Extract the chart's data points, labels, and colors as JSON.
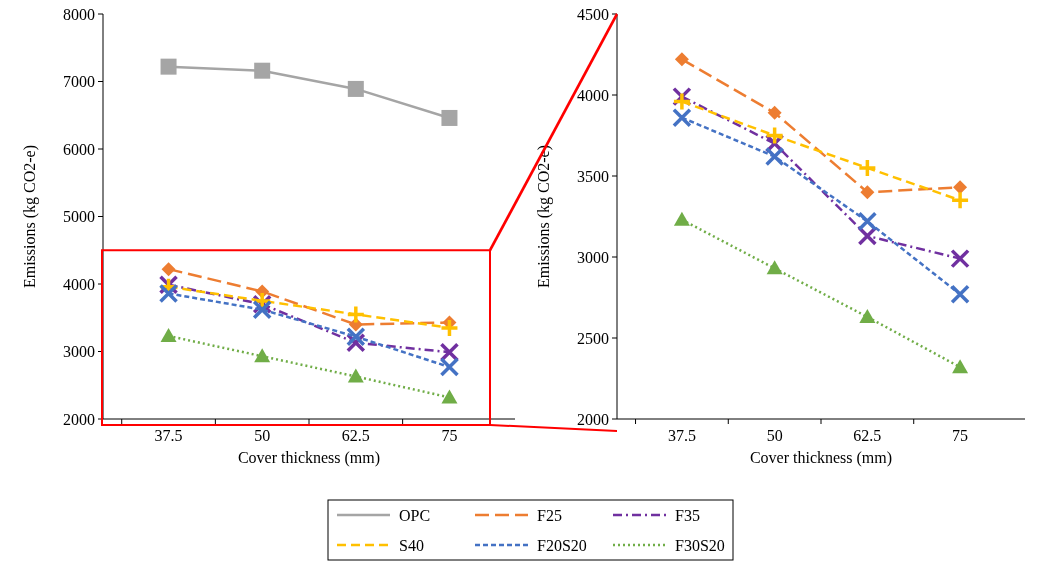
{
  "chart_data": [
    {
      "type": "line",
      "xlabel": "Cover thickness (mm)",
      "ylabel": "Emissions (kg CO2-e)",
      "categories": [
        "37.5",
        "50",
        "62.5",
        "75"
      ],
      "ylim": [
        2000,
        8000
      ],
      "yticks": [
        2000,
        3000,
        4000,
        5000,
        6000,
        7000,
        8000
      ],
      "grid": false,
      "legend": "bottom",
      "series": [
        {
          "name": "OPC",
          "color": "#a5a5a5",
          "values": [
            7220,
            7160,
            6890,
            6460
          ],
          "marker": "square",
          "line_style": "solid"
        },
        {
          "name": "F25",
          "color": "#ed7d31",
          "values": [
            4220,
            3890,
            3400,
            3430
          ],
          "marker": "diamond",
          "line_style": "longdash"
        },
        {
          "name": "F35",
          "color": "#7030a0",
          "values": [
            3990,
            3700,
            3130,
            2990
          ],
          "marker": "cross",
          "line_style": "dashdot"
        },
        {
          "name": "S40",
          "color": "#ffc000",
          "values": [
            3960,
            3750,
            3550,
            3350
          ],
          "marker": "plus",
          "line_style": "dashed"
        },
        {
          "name": "F20S20",
          "color": "#4472c4",
          "values": [
            3860,
            3620,
            3220,
            2770
          ],
          "marker": "cross",
          "line_style": "shortdash"
        },
        {
          "name": "F30S20",
          "color": "#70ad47",
          "values": [
            3230,
            2930,
            2630,
            2320
          ],
          "marker": "triangle",
          "line_style": "dotted"
        }
      ]
    },
    {
      "type": "line",
      "xlabel": "Cover thickness (mm)",
      "ylabel": "Emissions (kg CO2-e)",
      "categories": [
        "37.5",
        "50",
        "62.5",
        "75"
      ],
      "ylim": [
        2000,
        4500
      ],
      "yticks": [
        2000,
        2500,
        3000,
        3500,
        4000,
        4500
      ],
      "grid": false,
      "series": [
        {
          "color": "#ed7d31",
          "values": [
            4220,
            3890,
            3400,
            3430
          ],
          "marker": "diamond",
          "line_style": "longdash"
        },
        {
          "color": "#7030a0",
          "values": [
            3990,
            3700,
            3130,
            2990
          ],
          "marker": "cross",
          "line_style": "dashdot"
        },
        {
          "color": "#ffc000",
          "values": [
            3960,
            3750,
            3550,
            3350
          ],
          "marker": "plus",
          "line_style": "dashed"
        },
        {
          "color": "#4472c4",
          "values": [
            3860,
            3620,
            3220,
            2770
          ],
          "marker": "cross",
          "line_style": "shortdash"
        },
        {
          "color": "#70ad47",
          "values": [
            3230,
            2930,
            2630,
            2320
          ],
          "marker": "triangle",
          "line_style": "dotted"
        }
      ]
    }
  ]
}
